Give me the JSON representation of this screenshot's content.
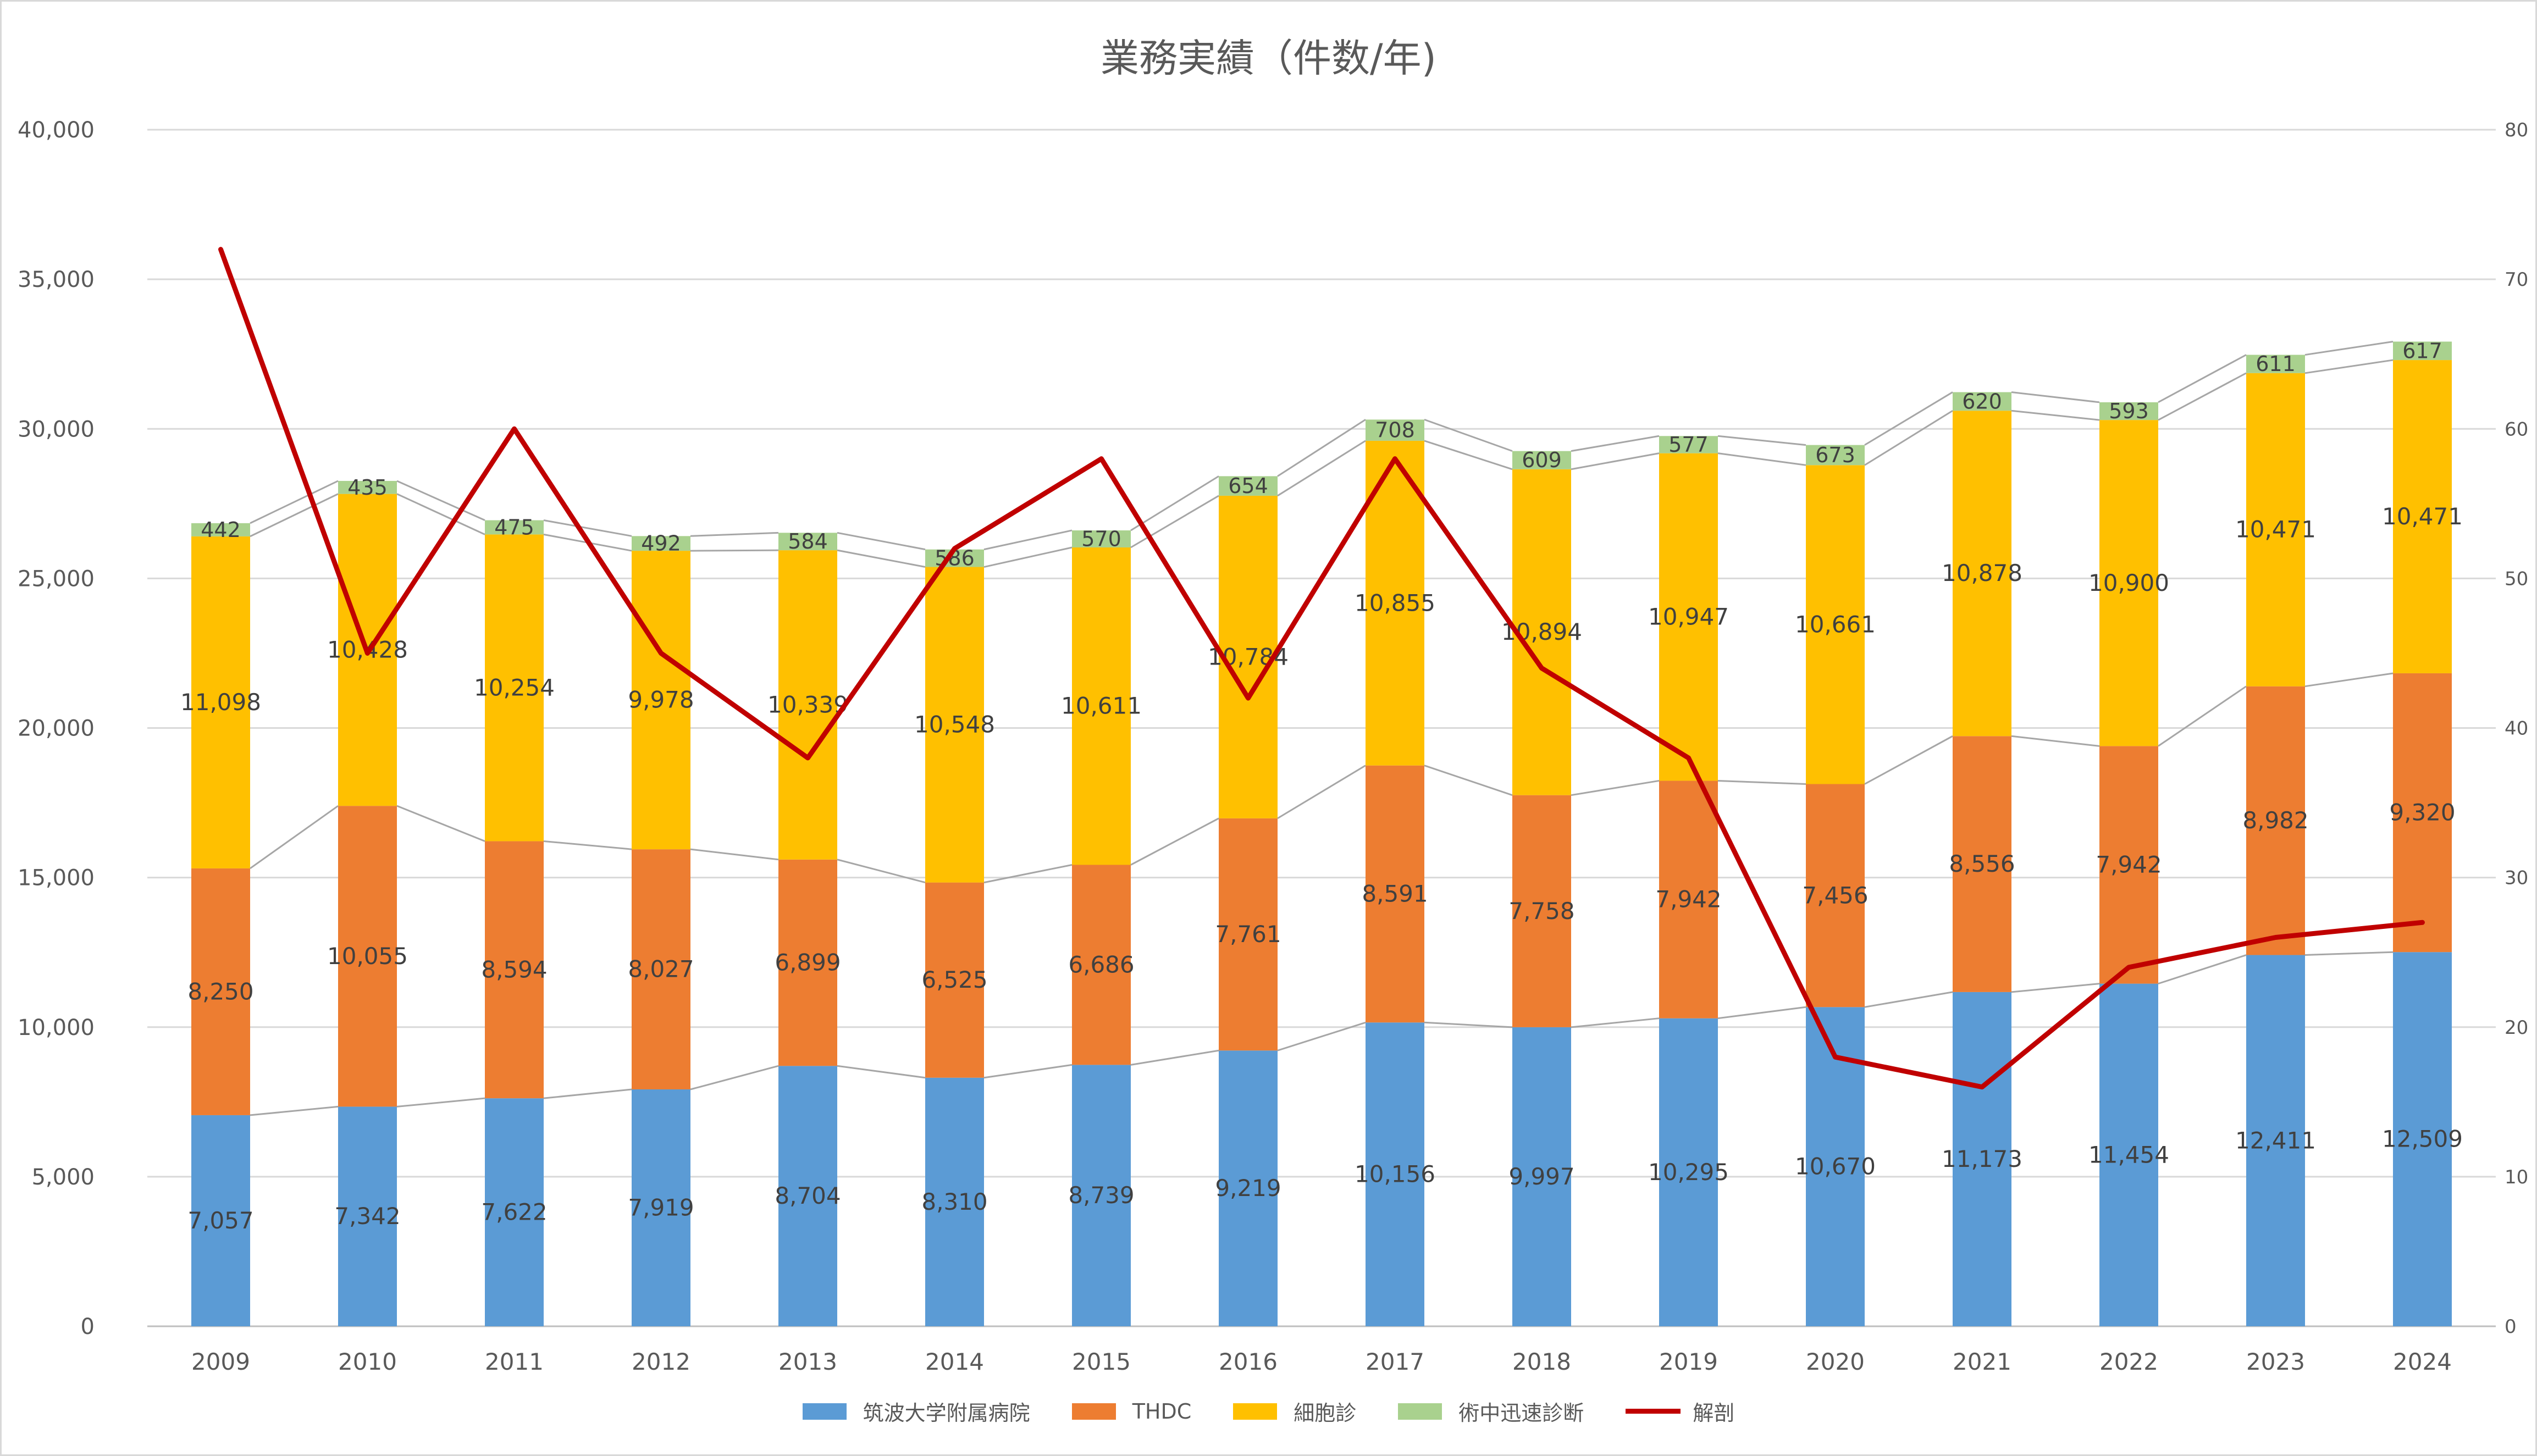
{
  "chart_data": {
    "type": "bar",
    "stacked": true,
    "title": "業務実績（件数/年)",
    "categories": [
      "2009",
      "2010",
      "2011",
      "2012",
      "2013",
      "2014",
      "2015",
      "2016",
      "2017",
      "2018",
      "2019",
      "2020",
      "2021",
      "2022",
      "2023",
      "2024"
    ],
    "series": [
      {
        "name": "筑波大学附属病院",
        "type": "bar",
        "color": "#5b9bd5",
        "axis": "left",
        "values": [
          7057,
          7342,
          7622,
          7919,
          8704,
          8310,
          8739,
          9219,
          10156,
          9997,
          10295,
          10670,
          11173,
          11454,
          12411,
          12509
        ],
        "labels": [
          "7,057",
          "7,342",
          "7,622",
          "7,919",
          "8,704",
          "8,310",
          "8,739",
          "9,219",
          "10,156",
          "9,997",
          "10,295",
          "10,670",
          "11,173",
          "11,454",
          "12,411",
          "12,509"
        ]
      },
      {
        "name": "THDC",
        "type": "bar",
        "color": "#ed7d31",
        "axis": "left",
        "values": [
          8250,
          10055,
          8594,
          8027,
          6899,
          6525,
          6686,
          7761,
          8591,
          7758,
          7942,
          7456,
          8556,
          7942,
          8982,
          9320
        ],
        "labels": [
          "8,250",
          "10,055",
          "8,594",
          "8,027",
          "6,899",
          "6,525",
          "6,686",
          "7,761",
          "8,591",
          "7,758",
          "7,942",
          "7,456",
          "8,556",
          "7,942",
          "8,982",
          "9,320"
        ]
      },
      {
        "name": "細胞診",
        "type": "bar",
        "color": "#ffc000",
        "axis": "left",
        "values": [
          11098,
          10428,
          10254,
          9978,
          10339,
          10548,
          10611,
          10784,
          10855,
          10894,
          10947,
          10661,
          10878,
          10900,
          10471,
          10471
        ],
        "labels": [
          "11,098",
          "10,428",
          "10,254",
          "9,978",
          "10,339",
          "10,548",
          "10,611",
          "10,784",
          "10,855",
          "10,894",
          "10,947",
          "10,661",
          "10,878",
          "10,900",
          "10,471",
          "10,471"
        ]
      },
      {
        "name": "術中迅速診断",
        "type": "bar",
        "color": "#a9d18e",
        "axis": "left",
        "values": [
          442,
          435,
          475,
          492,
          584,
          586,
          570,
          654,
          708,
          609,
          577,
          673,
          620,
          593,
          611,
          617
        ],
        "labels": [
          "442",
          "435",
          "475",
          "492",
          "584",
          "586",
          "570",
          "654",
          "708",
          "609",
          "577",
          "673",
          "620",
          "593",
          "611",
          "617"
        ]
      },
      {
        "name": "解剖",
        "type": "line",
        "color": "#c00000",
        "axis": "right",
        "values": [
          72,
          45,
          60,
          45,
          38,
          52,
          58,
          42,
          58,
          44,
          38,
          18,
          16,
          24,
          26,
          27
        ]
      }
    ],
    "ylim": [
      0,
      40000
    ],
    "y_ticks": [
      "0",
      "5,000",
      "10,000",
      "15,000",
      "20,000",
      "25,000",
      "30,000",
      "35,000",
      "40,000"
    ],
    "y2lim": [
      0,
      80
    ],
    "y2_ticks": [
      "0",
      "10",
      "20",
      "30",
      "40",
      "50",
      "60",
      "70",
      "80"
    ],
    "grid": true,
    "legend_position": "bottom"
  }
}
